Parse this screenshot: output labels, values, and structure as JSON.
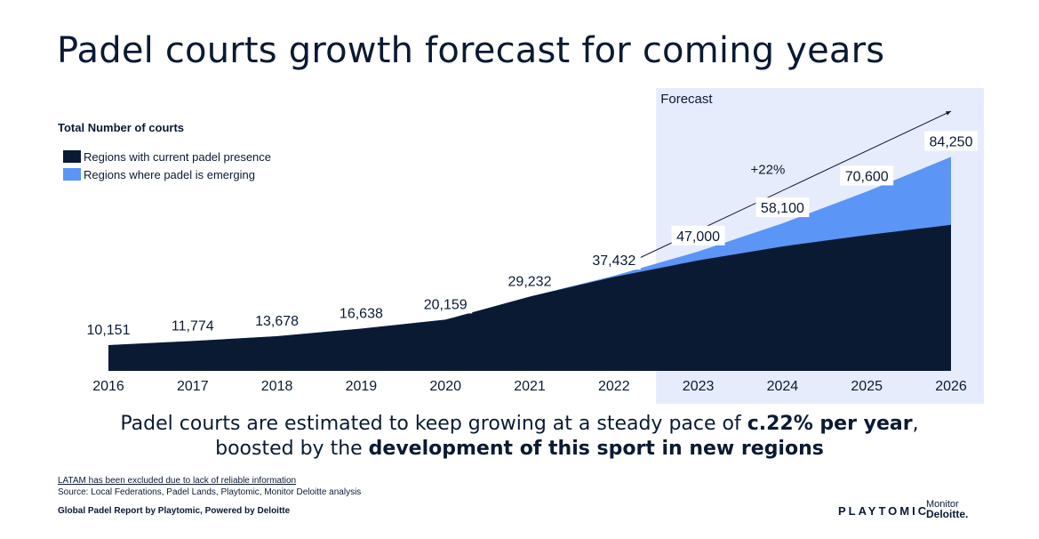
{
  "page": {
    "title": "Padel courts growth forecast for coming years",
    "headline_line1_pre": "Padel courts are estimated to keep growing at a steady pace of ",
    "headline_line1_bold": "c.22% per year",
    "headline_line1_post": ",",
    "headline_line2_pre": "boosted by the ",
    "headline_line2_bold": "development of this sport in new regions",
    "footnote_link": "LATAM has been excluded due to lack of reliable information",
    "footnote_source": "Source: Local Federations, Padel Lands, Playtomic, Monitor Deloitte analysis",
    "footnote_report": "Global Padel Report by Playtomic,  Powered by Deloitte",
    "brand_playtomic": "PLAYTOMIC",
    "brand_monitor": "Monitor",
    "brand_deloitte": "Deloitte."
  },
  "chart_data": {
    "type": "area",
    "title": "Total Number of courts",
    "x": [
      "2016",
      "2017",
      "2018",
      "2019",
      "2020",
      "2021",
      "2022",
      "2023",
      "2024",
      "2025",
      "2026"
    ],
    "series": [
      {
        "name": "Regions with current padel presence",
        "color": "#0b1a33",
        "values": [
          10151,
          11774,
          13678,
          16638,
          20159,
          29232,
          37000,
          43500,
          49000,
          53500,
          57500
        ]
      },
      {
        "name": "Regions where padel is emerging",
        "color": "#5b95f5",
        "values": [
          0,
          0,
          0,
          0,
          0,
          0,
          432,
          3500,
          9100,
          17100,
          26750
        ]
      }
    ],
    "total_labels": [
      "10,151",
      "11,774",
      "13,678",
      "16,638",
      "20,159",
      "29,232",
      "37,432",
      "47,000",
      "58,100",
      "70,600",
      "84,250"
    ],
    "forecast_label": "Forecast",
    "forecast_range": [
      "2023",
      "2026"
    ],
    "forecast_color": "#e6ecfb",
    "growth_label": "+22%",
    "ylim": [
      0,
      90000
    ],
    "grid": false,
    "legend_position": "top-left"
  }
}
